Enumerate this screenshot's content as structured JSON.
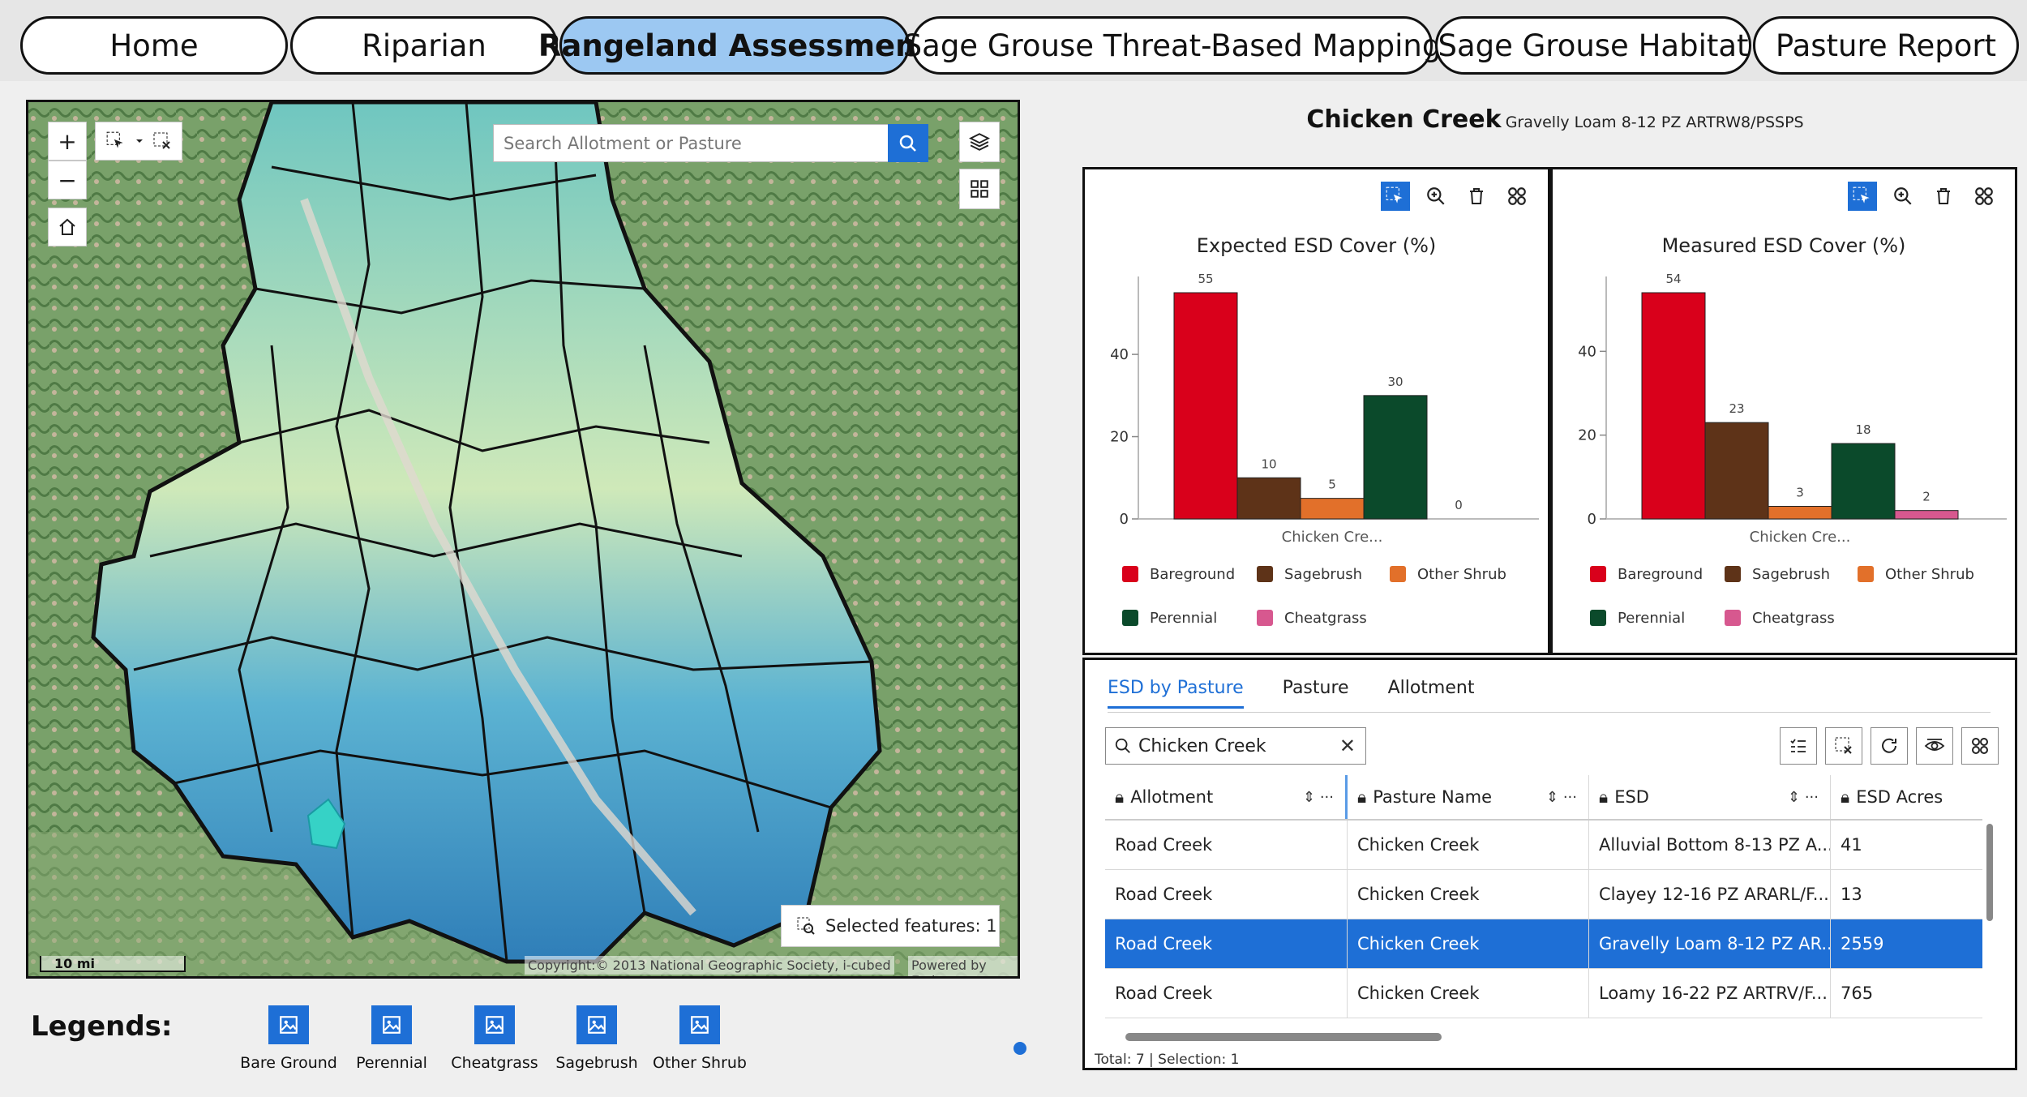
{
  "nav": {
    "tabs": [
      {
        "label": "Home"
      },
      {
        "label": "Riparian"
      },
      {
        "label": "Rangeland Assessment"
      },
      {
        "label": "Sage Grouse Threat-Based Mapping"
      },
      {
        "label": "Sage Grouse Habitat"
      },
      {
        "label": "Pasture Report"
      }
    ],
    "active": "Rangeland Assessment"
  },
  "map": {
    "search_placeholder": "Search Allotment or Pasture",
    "selected_features": "Selected features: 1",
    "scale_label": "10 mi",
    "copyright": "Copyright:© 2013 National Geographic Society, i-cubed",
    "powered_by": "Powered by Esri",
    "zoom_in": "+",
    "zoom_out": "−"
  },
  "legends": {
    "label": "Legends:",
    "items": [
      "Bare Ground",
      "Perennial",
      "Cheatgrass",
      "Sagebrush",
      "Other Shrub"
    ]
  },
  "chart_header": {
    "pasture": "Chicken Creek",
    "esd": "Gravelly Loam 8-12 PZ ARTRW8/PSSPS"
  },
  "colors": {
    "accent": "#1e6fd6",
    "bareground": "#d9001b",
    "sagebrush": "#5e3318",
    "other_shrub": "#e2702a",
    "perennial": "#0b4a2b",
    "cheatgrass": "#d7588f"
  },
  "chart_data": [
    {
      "type": "bar",
      "title": "Expected ESD Cover (%)",
      "categories": [
        "Chicken Cre..."
      ],
      "series": [
        {
          "name": "Bareground",
          "values": [
            55
          ]
        },
        {
          "name": "Sagebrush",
          "values": [
            10
          ]
        },
        {
          "name": "Other Shrub",
          "values": [
            5
          ]
        },
        {
          "name": "Perennial",
          "values": [
            30
          ]
        },
        {
          "name": "Cheatgrass",
          "values": [
            0
          ]
        }
      ],
      "yticks": [
        0,
        20,
        40
      ],
      "ylim": [
        0,
        55
      ],
      "legend_position": "bottom"
    },
    {
      "type": "bar",
      "title": "Measured ESD Cover (%)",
      "categories": [
        "Chicken Cre..."
      ],
      "series": [
        {
          "name": "Bareground",
          "values": [
            54
          ]
        },
        {
          "name": "Sagebrush",
          "values": [
            23
          ]
        },
        {
          "name": "Other Shrub",
          "values": [
            3
          ]
        },
        {
          "name": "Perennial",
          "values": [
            18
          ]
        },
        {
          "name": "Cheatgrass",
          "values": [
            2
          ]
        }
      ],
      "yticks": [
        0,
        20,
        40
      ],
      "ylim": [
        0,
        54
      ],
      "legend_position": "bottom"
    }
  ],
  "table": {
    "tabs": [
      "ESD by Pasture",
      "Pasture",
      "Allotment"
    ],
    "active_tab": "ESD by Pasture",
    "search_value": "Chicken Creek",
    "columns": [
      "Allotment",
      "Pasture Name",
      "ESD",
      "ESD Acres"
    ],
    "rows": [
      [
        "Road Creek",
        "Chicken Creek",
        "Alluvial Bottom 8-13 PZ A...",
        "41"
      ],
      [
        "Road Creek",
        "Chicken Creek",
        "Clayey 12-16 PZ ARARL/F...",
        "13"
      ],
      [
        "Road Creek",
        "Chicken Creek",
        "Gravelly Loam 8-12 PZ AR...",
        "2559"
      ],
      [
        "Road Creek",
        "Chicken Creek",
        "Loamy 16-22 PZ ARTRV/F...",
        "765"
      ]
    ],
    "selected_row": 2,
    "footer": "Total: 7 | Selection: 1"
  }
}
